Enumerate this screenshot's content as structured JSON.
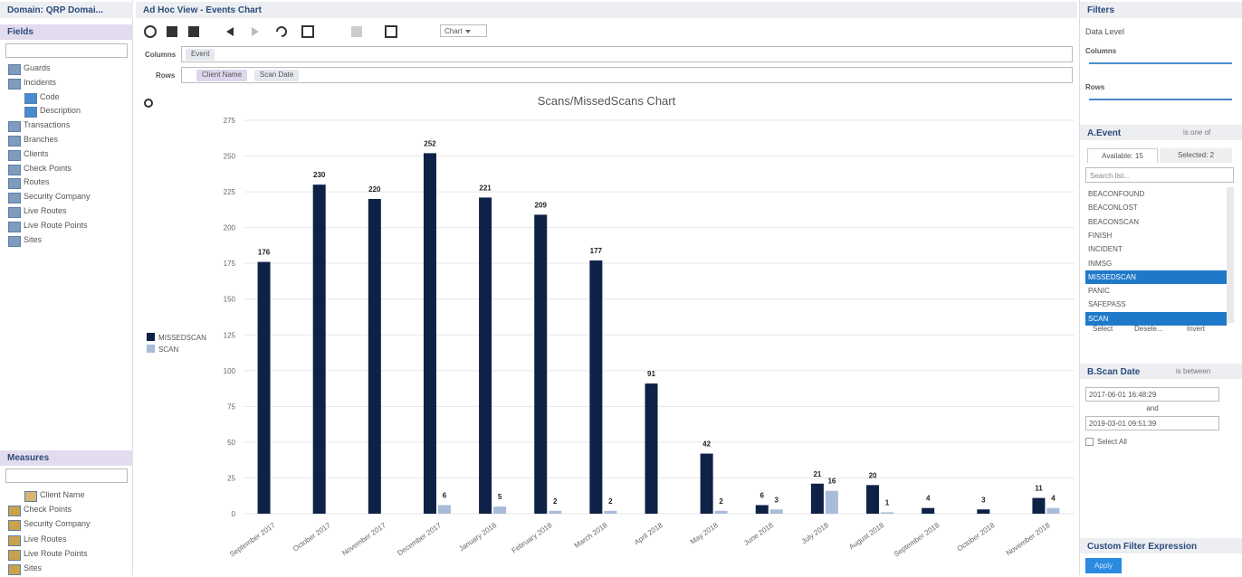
{
  "left_panel": {
    "domain": "Domain: QRP Domai...",
    "fields_title": "Fields",
    "fields": [
      {
        "label": "Guards"
      },
      {
        "label": "Incidents",
        "children": [
          "Code",
          "Description"
        ]
      },
      {
        "label": "Transactions"
      },
      {
        "label": "Branches"
      },
      {
        "label": "Clients"
      },
      {
        "label": "Check Points"
      },
      {
        "label": "Routes"
      },
      {
        "label": "Security Company"
      },
      {
        "label": "Live Routes"
      },
      {
        "label": "Live Route Points"
      },
      {
        "label": "Sites"
      }
    ],
    "measures_title": "Measures",
    "measures": [
      "Client Name",
      "Check Points",
      "Security Company",
      "Live Routes",
      "Live Route Points",
      "Sites"
    ]
  },
  "center": {
    "title": "Ad Hoc View - Events Chart",
    "view_select": "Chart",
    "columns_label": "Columns",
    "columns": [
      "Event"
    ],
    "rows_label": "Rows",
    "rows": [
      "Client Name",
      "Scan Date"
    ]
  },
  "right_panel": {
    "title": "Filters",
    "data_level": "Data Level",
    "columns_label": "Columns",
    "rows_label": "Rows",
    "event_filter": {
      "title": "A.Event",
      "operator": "is one of",
      "available_tab": "Available: 15",
      "selected_tab": "Selected: 2",
      "search_placeholder": "Search list...",
      "items": [
        {
          "label": "BEACONFOUND",
          "selected": false
        },
        {
          "label": "BEACONLOST",
          "selected": false
        },
        {
          "label": "BEACONSCAN",
          "selected": false
        },
        {
          "label": "FINISH",
          "selected": false
        },
        {
          "label": "INCIDENT",
          "selected": false
        },
        {
          "label": "INMSG",
          "selected": false
        },
        {
          "label": "MISSEDSCAN",
          "selected": true
        },
        {
          "label": "PANIC",
          "selected": false
        },
        {
          "label": "SAFEPASS",
          "selected": false
        },
        {
          "label": "SCAN",
          "selected": true
        }
      ],
      "buttons": [
        "Select",
        "Desele...",
        "Invert"
      ]
    },
    "date_filter": {
      "title": "B.Scan Date",
      "operator": "is between",
      "from": "2017-06-01 16:48:29",
      "and": "and",
      "to": "2019-03-01 09:51:39",
      "select_all": "Select All"
    },
    "custom_filter": "Custom Filter Expression",
    "apply": "Apply"
  },
  "chart_data": {
    "type": "bar",
    "title": "Scans/MissedScans Chart",
    "categories": [
      "September 2017",
      "October 2017",
      "November 2017",
      "December 2017",
      "January 2018",
      "February 2018",
      "March 2018",
      "April 2018",
      "May 2018",
      "June 2018",
      "July 2018",
      "August 2018",
      "September 2018",
      "October 2018",
      "November 2018"
    ],
    "series": [
      {
        "name": "MISSEDSCAN",
        "color": "#0e2147",
        "values": [
          176,
          230,
          220,
          252,
          221,
          209,
          177,
          91,
          42,
          6,
          21,
          20,
          4,
          3,
          11
        ]
      },
      {
        "name": "SCAN",
        "color": "#a8bcd9",
        "values": [
          null,
          null,
          null,
          6,
          5,
          2,
          2,
          null,
          2,
          3,
          16,
          1,
          null,
          null,
          4
        ]
      }
    ],
    "ylim": [
      0,
      275
    ],
    "yticks": [
      0,
      25,
      50,
      75,
      100,
      125,
      150,
      175,
      200,
      225,
      250,
      275
    ],
    "grid": true
  }
}
